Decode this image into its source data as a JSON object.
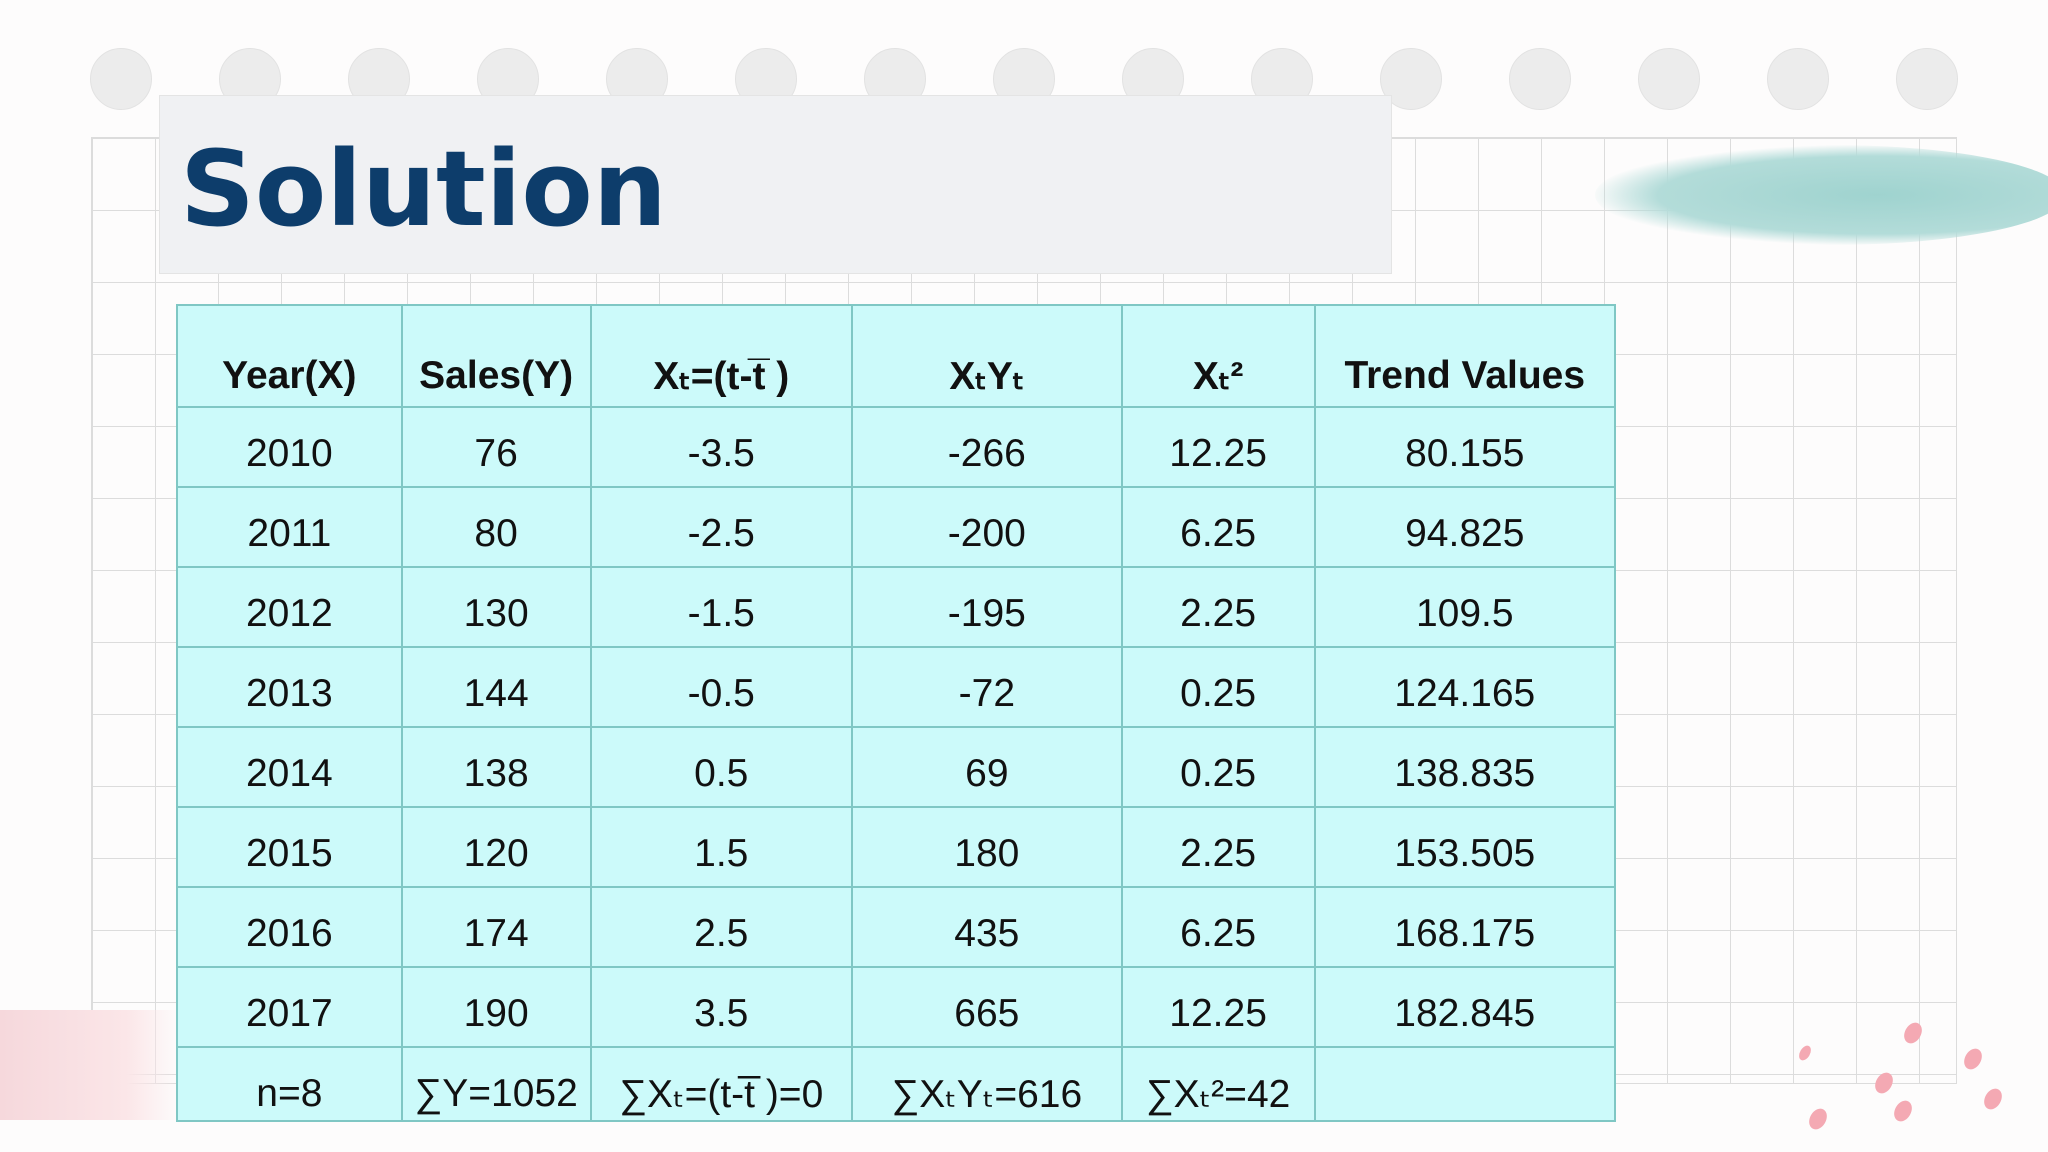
{
  "title": "Solution",
  "table": {
    "headers": [
      "Year(X)",
      "Sales(Y)",
      "Xₜ=(t-t̅ )",
      "XₜYₜ",
      "Xₜ²",
      "Trend Values"
    ],
    "rows": [
      [
        "2010",
        "76",
        "-3.5",
        "-266",
        "12.25",
        "80.155"
      ],
      [
        "2011",
        "80",
        "-2.5",
        "-200",
        "6.25",
        "94.825"
      ],
      [
        "2012",
        "130",
        "-1.5",
        "-195",
        "2.25",
        "109.5"
      ],
      [
        "2013",
        "144",
        "-0.5",
        "-72",
        "0.25",
        "124.165"
      ],
      [
        "2014",
        "138",
        "0.5",
        "69",
        "0.25",
        "138.835"
      ],
      [
        "2015",
        "120",
        "1.5",
        "180",
        "2.25",
        "153.505"
      ],
      [
        "2016",
        "174",
        "2.5",
        "435",
        "6.25",
        "168.175"
      ],
      [
        "2017",
        "190",
        "3.5",
        "665",
        "12.25",
        "182.845"
      ]
    ],
    "totals": [
      "n=8",
      "∑Y=1052",
      "∑Xₜ=(t-t̅ )=0",
      "∑XₜYₜ=616",
      "∑Xₜ²=42",
      ""
    ]
  }
}
